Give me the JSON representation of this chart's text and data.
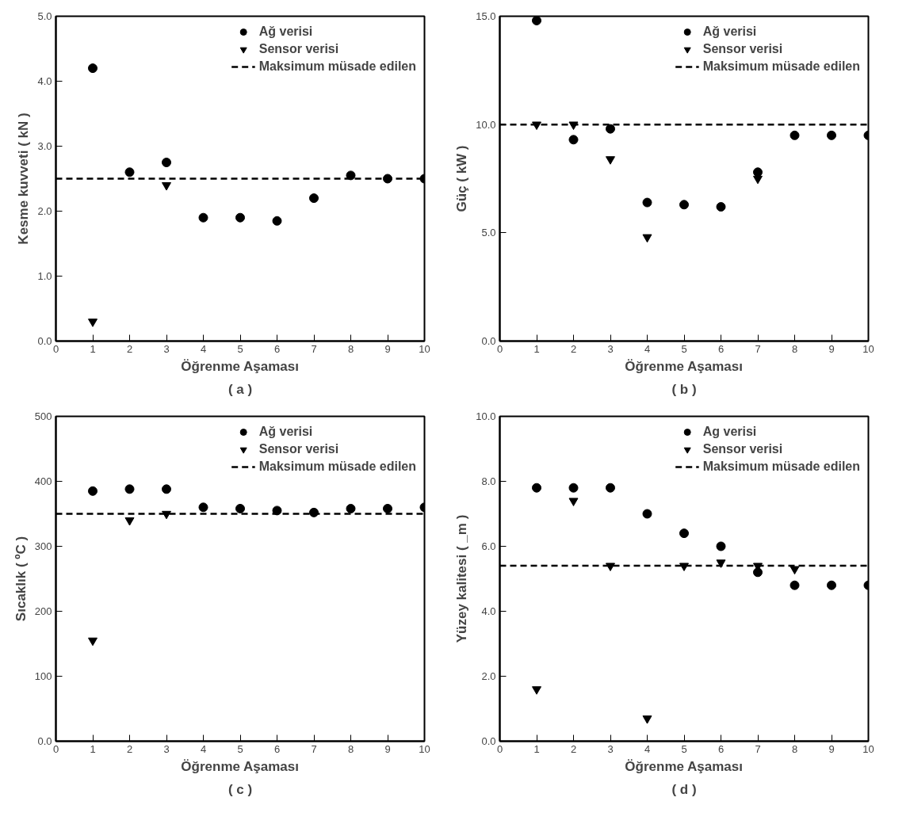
{
  "chart_data": [
    {
      "type": "scatter",
      "xlabel": "Öğrenme Aşaması",
      "ylabel": "Kesme kuvveti ( kN )",
      "annotations": [
        "( a )"
      ],
      "x": [
        1,
        2,
        3,
        4,
        5,
        6,
        7,
        8,
        9,
        10
      ],
      "xlim": [
        0,
        10
      ],
      "xticks": [
        0,
        1,
        2,
        3,
        4,
        5,
        6,
        7,
        8,
        9,
        10
      ],
      "ylim": [
        0,
        5
      ],
      "yticks": [
        {
          "value": 0,
          "label": "0.0"
        },
        {
          "value": 1,
          "label": "1.0"
        },
        {
          "value": 2,
          "label": "2.0"
        },
        {
          "value": 3,
          "label": "3.0"
        },
        {
          "value": 4,
          "label": "4.0"
        },
        {
          "value": 5,
          "label": "5.0"
        }
      ],
      "grid": false,
      "legend": "top right",
      "series": [
        {
          "name": "Ağ verisi",
          "color": "#000000",
          "marker": "circle",
          "values": [
            4.2,
            2.6,
            2.75,
            1.9,
            1.9,
            1.85,
            2.2,
            2.55,
            2.5,
            2.5
          ]
        },
        {
          "name": "Sensor verisi",
          "color": "#000000",
          "marker": "triangle",
          "values": [
            0.3,
            null,
            2.4,
            null,
            null,
            null,
            null,
            null,
            null,
            null
          ]
        }
      ],
      "ref_lines": [
        {
          "axis": "y",
          "value": 2.5,
          "label": "Maksimum müsade edilen",
          "color": "#000000",
          "line_style": "dashed"
        }
      ]
    },
    {
      "type": "scatter",
      "xlabel": "Öğrenme Aşaması",
      "ylabel": "Güç ( kW )",
      "annotations": [
        "( b )"
      ],
      "x": [
        1,
        2,
        3,
        4,
        5,
        6,
        7,
        8,
        9,
        10
      ],
      "xlim": [
        0,
        10
      ],
      "xticks": [
        0,
        1,
        2,
        3,
        4,
        5,
        6,
        7,
        8,
        9,
        10
      ],
      "ylim": [
        0,
        15
      ],
      "yticks": [
        {
          "value": 0,
          "label": "0.0"
        },
        {
          "value": 5,
          "label": "5.0"
        },
        {
          "value": 10,
          "label": "10.0"
        },
        {
          "value": 15,
          "label": "15.0"
        }
      ],
      "grid": false,
      "legend": "top right",
      "series": [
        {
          "name": "Ağ verisi",
          "color": "#000000",
          "marker": "circle",
          "values": [
            14.8,
            9.3,
            9.8,
            6.4,
            6.3,
            6.2,
            7.8,
            9.5,
            9.5,
            9.5
          ]
        },
        {
          "name": "Sensor verisi",
          "color": "#000000",
          "marker": "triangle",
          "values": [
            10.0,
            10.0,
            8.4,
            4.8,
            null,
            null,
            7.5,
            null,
            null,
            null
          ]
        }
      ],
      "ref_lines": [
        {
          "axis": "y",
          "value": 10,
          "label": "Maksimum müsade edilen",
          "color": "#000000",
          "line_style": "dashed"
        }
      ]
    },
    {
      "type": "scatter",
      "xlabel": "Öğrenme Aşaması",
      "ylabel": "Sıcaklık ( ºC )",
      "annotations": [
        "( c )"
      ],
      "x": [
        1,
        2,
        3,
        4,
        5,
        6,
        7,
        8,
        9,
        10
      ],
      "xlim": [
        0,
        10
      ],
      "xticks": [
        0,
        1,
        2,
        3,
        4,
        5,
        6,
        7,
        8,
        9,
        10
      ],
      "ylim": [
        0,
        500
      ],
      "yticks": [
        {
          "value": 0,
          "label": "0.0"
        },
        100,
        200,
        300,
        400,
        500
      ],
      "grid": false,
      "legend": "top right",
      "series": [
        {
          "name": "Ağ verisi",
          "color": "#000000",
          "marker": "circle",
          "values": [
            385,
            388,
            388,
            360,
            358,
            355,
            352,
            358,
            358,
            360
          ]
        },
        {
          "name": "Sensor verisi",
          "color": "#000000",
          "marker": "triangle",
          "values": [
            155,
            340,
            350,
            null,
            null,
            null,
            null,
            null,
            null,
            null
          ]
        }
      ],
      "ref_lines": [
        {
          "axis": "y",
          "value": 350,
          "label": "Maksimum müsade edilen",
          "color": "#000000",
          "line_style": "dashed"
        }
      ]
    },
    {
      "type": "scatter",
      "xlabel": "Öğrenme Aşaması",
      "ylabel": "Yüzey kalitesi ( _m )",
      "annotations": [
        "( d )"
      ],
      "x": [
        1,
        2,
        3,
        4,
        5,
        6,
        7,
        8,
        9,
        10
      ],
      "xlim": [
        0,
        10
      ],
      "xticks": [
        0,
        1,
        2,
        3,
        4,
        5,
        6,
        7,
        8,
        9,
        10
      ],
      "ylim": [
        0,
        10
      ],
      "yticks": [
        {
          "value": 0,
          "label": "0.0"
        },
        {
          "value": 2,
          "label": "2.0"
        },
        {
          "value": 4,
          "label": "4.0"
        },
        {
          "value": 6,
          "label": "6.0"
        },
        {
          "value": 8,
          "label": "8.0"
        },
        {
          "value": 10,
          "label": "10.0"
        }
      ],
      "grid": false,
      "legend": "top right",
      "series": [
        {
          "name": "Ag verisi",
          "color": "#000000",
          "marker": "circle",
          "values": [
            7.8,
            7.8,
            7.8,
            7.0,
            6.4,
            6.0,
            5.2,
            4.8,
            4.8,
            4.8
          ]
        },
        {
          "name": "Sensor verisi",
          "color": "#000000",
          "marker": "triangle",
          "values": [
            1.6,
            7.4,
            5.4,
            0.7,
            5.4,
            5.5,
            5.4,
            5.3,
            null,
            null
          ]
        }
      ],
      "ref_lines": [
        {
          "axis": "y",
          "value": 5.4,
          "label": "Maksimum müsade edilen",
          "color": "#000000",
          "line_style": "dashed"
        }
      ]
    }
  ]
}
